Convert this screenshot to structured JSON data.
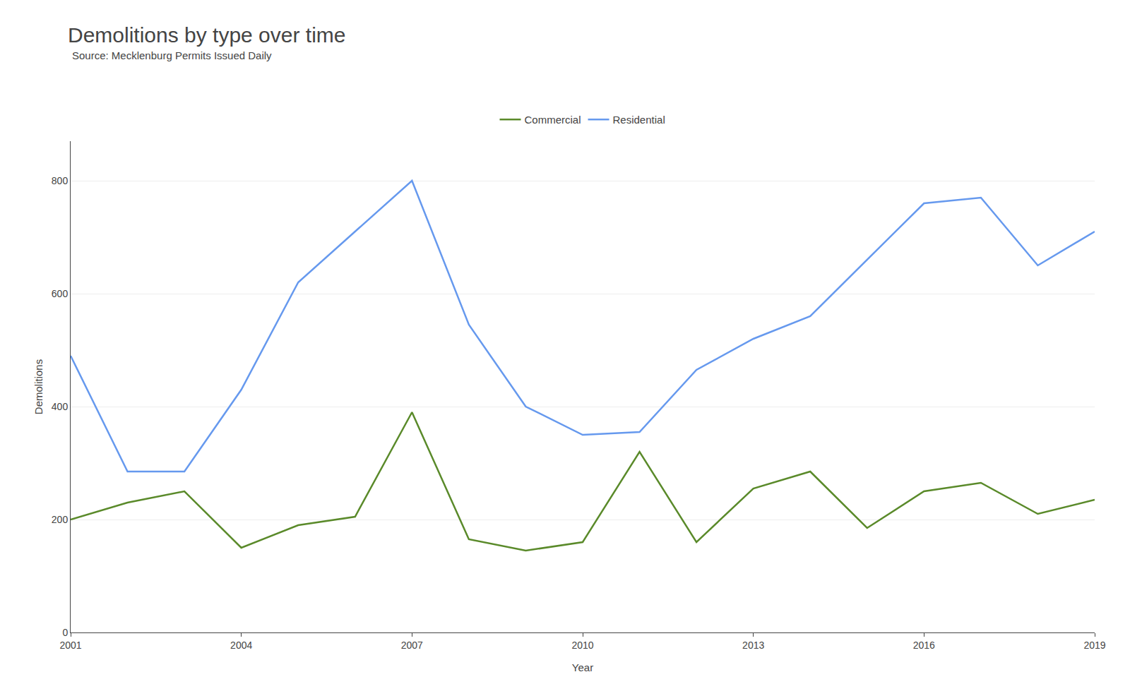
{
  "chart_data": {
    "type": "line",
    "title": "Demolitions by type over time",
    "subtitle": "Source: Mecklenburg Permits Issued Daily",
    "xlabel": "Year",
    "ylabel": "Demolitions",
    "x": [
      2001,
      2002,
      2003,
      2004,
      2005,
      2006,
      2007,
      2008,
      2009,
      2010,
      2011,
      2012,
      2013,
      2014,
      2015,
      2016,
      2017,
      2018,
      2019
    ],
    "series": [
      {
        "name": "Commercial",
        "color": "#5a8a2a",
        "values": [
          200,
          230,
          250,
          150,
          190,
          205,
          390,
          165,
          145,
          160,
          320,
          160,
          255,
          285,
          185,
          250,
          265,
          210,
          235
        ]
      },
      {
        "name": "Residential",
        "color": "#6699ee",
        "values": [
          490,
          285,
          285,
          430,
          620,
          710,
          800,
          545,
          400,
          350,
          355,
          465,
          520,
          560,
          660,
          760,
          770,
          650,
          710
        ]
      }
    ],
    "xlim": [
      2001,
      2019
    ],
    "xticks": [
      2001,
      2004,
      2007,
      2010,
      2013,
      2016,
      2019
    ],
    "ylim": [
      0,
      870
    ],
    "yticks": [
      0,
      200,
      400,
      600,
      800
    ],
    "grid": true,
    "legend": "top"
  }
}
